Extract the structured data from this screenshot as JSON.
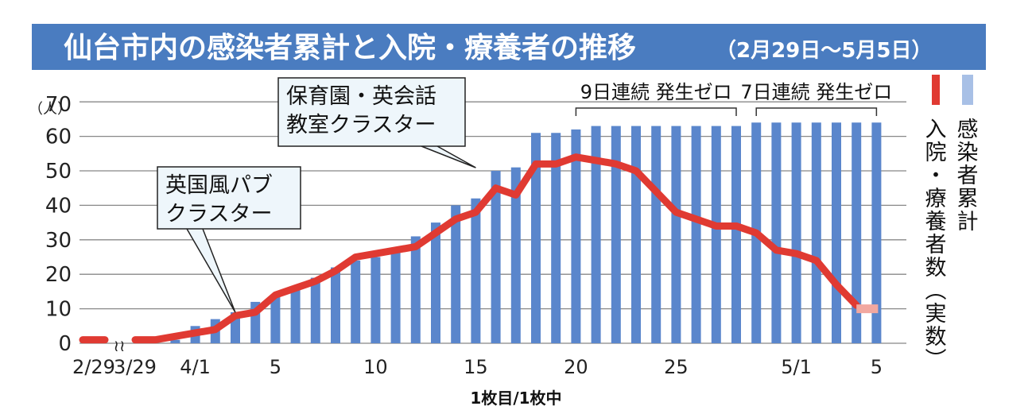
{
  "caption": "1枚目/1枚中",
  "colors": {
    "title_bg": "#4a7cc0",
    "title_text": "#ffffff",
    "bar": "#5a86cc",
    "bar_light": "#a8c0e6",
    "line": "#e03a32",
    "line_projected": "#f2a8a0",
    "callout_bg": "#eef6fb",
    "grid": "#888888",
    "axis_text": "#222222"
  },
  "chart_data": {
    "type": "bar",
    "title": "仙台市内の感染者累計と入院・療養者の推移",
    "subtitle": "（2月29日～5月5日）",
    "y_unit": "（人）",
    "ylim": [
      0,
      70
    ],
    "yticks": [
      "0",
      "10",
      "20",
      "30",
      "40",
      "50",
      "60",
      "70"
    ],
    "grid": true,
    "x_tick_labels": [
      {
        "day": 0,
        "label": "2/29"
      },
      {
        "day": 1,
        "label": "3/29"
      },
      {
        "day": 4,
        "label": "4/1"
      },
      {
        "day": 8,
        "label": "5"
      },
      {
        "day": 13,
        "label": "10"
      },
      {
        "day": 18,
        "label": "15"
      },
      {
        "day": 23,
        "label": "20"
      },
      {
        "day": 28,
        "label": "25"
      },
      {
        "day": 34,
        "label": "5/1"
      },
      {
        "day": 38,
        "label": "5"
      }
    ],
    "series": [
      {
        "name": "感染者累計",
        "kind": "bar",
        "days": [
          3,
          4,
          5,
          6,
          7,
          8,
          9,
          10,
          11,
          12,
          13,
          14,
          15,
          16,
          17,
          18,
          19,
          20,
          21,
          22,
          23,
          24,
          25,
          26,
          27,
          28,
          29,
          30,
          31,
          32,
          33,
          34,
          35,
          36,
          37,
          38
        ],
        "values": [
          1,
          5,
          7,
          9,
          12,
          14,
          16,
          19,
          22,
          24,
          25,
          27,
          31,
          35,
          40,
          42,
          50,
          51,
          61,
          61,
          62,
          63,
          63,
          63,
          63,
          63,
          63,
          63,
          63,
          64,
          64,
          64,
          64,
          64,
          64,
          64
        ]
      },
      {
        "name": "入院・療養者数（実数）",
        "kind": "line",
        "days": [
          0,
          1,
          2,
          3,
          4,
          5,
          6,
          7,
          8,
          9,
          10,
          11,
          12,
          13,
          14,
          15,
          16,
          17,
          18,
          19,
          20,
          21,
          22,
          23,
          24,
          25,
          26,
          27,
          28,
          29,
          30,
          31,
          32,
          33,
          34,
          35,
          36,
          37
        ],
        "values": [
          1,
          1,
          1,
          2,
          3,
          4,
          8,
          9,
          14,
          16,
          18,
          21,
          25,
          26,
          27,
          28,
          32,
          36,
          38,
          45,
          43,
          52,
          52,
          54,
          53,
          52,
          50,
          44,
          38,
          36,
          34,
          34,
          32,
          27,
          26,
          24,
          17,
          11
        ],
        "projected": {
          "days": [
            37,
            38
          ],
          "values": [
            10,
            10
          ]
        }
      }
    ],
    "annotations": [
      {
        "text_lines": [
          "英国風パブ",
          "クラスター"
        ],
        "target_day": 6,
        "target_value": 8
      },
      {
        "text_lines": [
          "保育園・英会話",
          "教室クラスター"
        ],
        "target_day": 18,
        "target_value": 50
      },
      {
        "text": "9日連続 発生ゼロ",
        "from_day": 23,
        "to_day": 31
      },
      {
        "text": "7日連続 発生ゼロ",
        "from_day": 32,
        "to_day": 38
      }
    ],
    "legend_position": "right"
  }
}
